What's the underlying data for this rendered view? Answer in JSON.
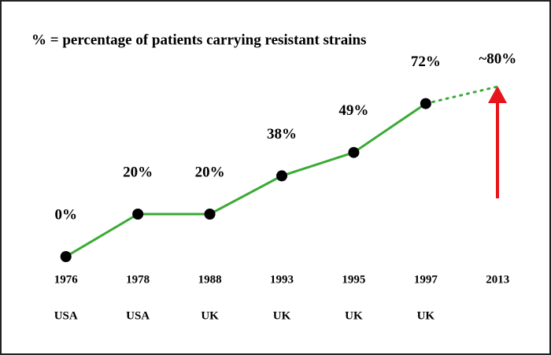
{
  "chart_data": {
    "type": "line",
    "title": "% = percentage of patients carrying resistant strains",
    "categories": [
      "1976",
      "1978",
      "1988",
      "1993",
      "1995",
      "1997",
      "2013"
    ],
    "countries": [
      "USA",
      "USA",
      "UK",
      "UK",
      "UK",
      "UK",
      null
    ],
    "values": [
      0,
      20,
      20,
      38,
      49,
      72,
      80
    ],
    "value_labels": [
      "0%",
      "20%",
      "20%",
      "38%",
      "49%",
      "72%",
      "~80%"
    ],
    "color": "#3aaa35",
    "marker_color": "#000000",
    "projected_from": 5
  }
}
